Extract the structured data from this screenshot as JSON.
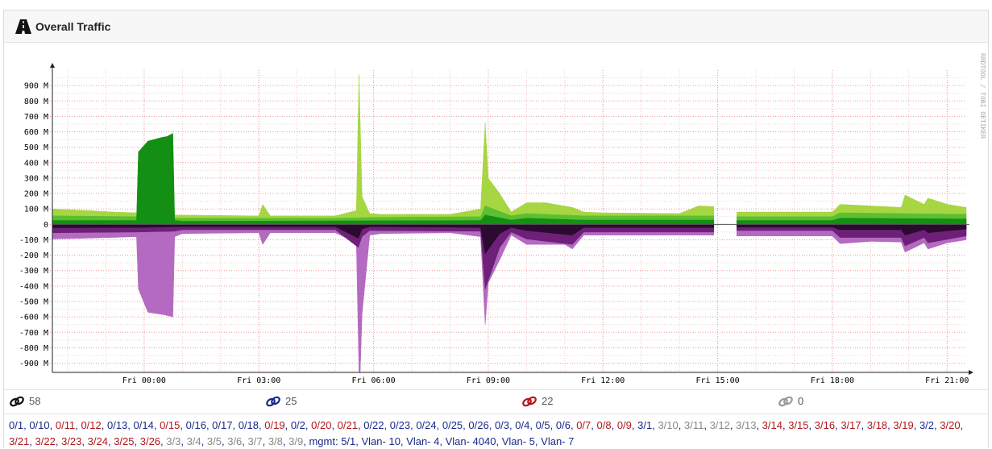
{
  "header": {
    "title": "Overall Traffic",
    "icon": "traffic-road-icon"
  },
  "watermark": "RRDTOOL / TOBI OETIKER",
  "chart_data": {
    "type": "area",
    "title": "",
    "xlabel": "",
    "ylabel": "",
    "ylim": [
      -960,
      1000
    ],
    "x_ticks": [
      "Fri 00:00",
      "Fri 03:00",
      "Fri 06:00",
      "Fri 09:00",
      "Fri 12:00",
      "Fri 15:00",
      "Fri 18:00",
      "Fri 21:00"
    ],
    "y_ticks": [
      {
        "value": 900,
        "label": "900 M"
      },
      {
        "value": 800,
        "label": "800 M"
      },
      {
        "value": 700,
        "label": "700 M"
      },
      {
        "value": 600,
        "label": "600 M"
      },
      {
        "value": 500,
        "label": "500 M"
      },
      {
        "value": 400,
        "label": "400 M"
      },
      {
        "value": 300,
        "label": "300 M"
      },
      {
        "value": 200,
        "label": "200 M"
      },
      {
        "value": 100,
        "label": "100 M"
      },
      {
        "value": 0,
        "label": "0"
      },
      {
        "value": -100,
        "label": "-100 M"
      },
      {
        "value": -200,
        "label": "-200 M"
      },
      {
        "value": -300,
        "label": "-300 M"
      },
      {
        "value": -400,
        "label": "-400 M"
      },
      {
        "value": -500,
        "label": "-500 M"
      },
      {
        "value": -600,
        "label": "-600 M"
      },
      {
        "value": -700,
        "label": "-700 M"
      },
      {
        "value": -800,
        "label": "-800 M"
      },
      {
        "value": -900,
        "label": "-900 M"
      }
    ],
    "x_hours_range": [
      -2.4,
      21.5
    ],
    "grid": true,
    "gaps": [
      [
        14.9,
        15.5
      ]
    ],
    "series": [
      {
        "direction": "in",
        "color": "#a6d642",
        "x": [
          -2.4,
          -1.5,
          -0.8,
          -0.2,
          0.8,
          1,
          3,
          3.1,
          3.3,
          5,
          5.55,
          5.62,
          5.7,
          5.9,
          6.2,
          8,
          8.8,
          8.92,
          9,
          9.3,
          9.6,
          10,
          10.5,
          11.2,
          11.5,
          12,
          14,
          14.5,
          14.9,
          15.5,
          18,
          18.2,
          19,
          19.8,
          19.9,
          20.4,
          20.5,
          21,
          21.5
        ],
        "values": [
          100,
          90,
          80,
          75,
          60,
          60,
          55,
          130,
          55,
          55,
          90,
          970,
          180,
          70,
          65,
          65,
          100,
          660,
          300,
          200,
          80,
          140,
          140,
          110,
          80,
          75,
          70,
          120,
          115,
          80,
          80,
          130,
          120,
          110,
          190,
          130,
          170,
          130,
          110
        ]
      },
      {
        "direction": "in",
        "color": "#5bbf31",
        "x": [
          -2.4,
          -0.2,
          0,
          0.7,
          0.8,
          1,
          5,
          6,
          8.8,
          8.92,
          9.6,
          10,
          11.5,
          14.9,
          15.5,
          18,
          18.2,
          21.5
        ],
        "values": [
          55,
          50,
          50,
          50,
          40,
          40,
          40,
          45,
          50,
          120,
          55,
          70,
          55,
          55,
          50,
          50,
          75,
          65
        ]
      },
      {
        "direction": "in",
        "color": "#139013",
        "x": [
          -2.4,
          -0.2,
          -0.15,
          0.1,
          0.4,
          0.6,
          0.75,
          0.8,
          1,
          8.8,
          8.92,
          9.6,
          10,
          11.5,
          14.9,
          15.5,
          18,
          18.2,
          21.5
        ],
        "values": [
          25,
          25,
          470,
          540,
          560,
          570,
          590,
          25,
          20,
          25,
          60,
          28,
          40,
          28,
          28,
          25,
          25,
          40,
          35
        ]
      },
      {
        "direction": "out",
        "color": "#b46ac0",
        "x": [
          -2.4,
          -1.5,
          -0.8,
          -0.2,
          -0.15,
          0.1,
          0.5,
          0.75,
          0.8,
          1,
          3,
          3.1,
          3.3,
          5,
          5.55,
          5.62,
          5.65,
          5.7,
          5.9,
          6.2,
          8,
          8.8,
          8.92,
          9,
          9.3,
          9.6,
          10,
          11,
          11.2,
          11.5,
          14.9,
          15.5,
          18,
          18.2,
          19,
          19.8,
          19.9,
          20.4,
          20.5,
          21,
          21.5
        ],
        "values": [
          -95,
          -90,
          -85,
          -80,
          -420,
          -570,
          -585,
          -600,
          -80,
          -60,
          -55,
          -130,
          -55,
          -55,
          -120,
          -960,
          -960,
          -580,
          -70,
          -60,
          -55,
          -80,
          -650,
          -380,
          -230,
          -70,
          -130,
          -130,
          -160,
          -70,
          -70,
          -75,
          -75,
          -125,
          -110,
          -115,
          -180,
          -120,
          -160,
          -120,
          -100
        ]
      },
      {
        "direction": "out",
        "color": "#6e2079",
        "x": [
          -2.4,
          -0.2,
          0.8,
          1,
          5,
          5.6,
          5.7,
          5.9,
          8.8,
          8.92,
          9.3,
          9.6,
          10,
          11.2,
          11.5,
          14.9,
          15.5,
          18,
          18.2,
          19.8,
          19.9,
          20.4,
          20.5,
          21.5
        ],
        "values": [
          -55,
          -50,
          -45,
          -35,
          -35,
          -150,
          -80,
          -40,
          -45,
          -420,
          -150,
          -50,
          -95,
          -130,
          -50,
          -50,
          -40,
          -40,
          -85,
          -85,
          -140,
          -85,
          -120,
          -75
        ]
      },
      {
        "direction": "out",
        "color": "#2a0a2e",
        "x": [
          -2.4,
          -0.2,
          1,
          5,
          5.6,
          5.7,
          5.9,
          8.8,
          8.92,
          9.3,
          9.6,
          10,
          11.2,
          11.5,
          14.9,
          15.5,
          18,
          18.2,
          19.8,
          19.9,
          20.4,
          20.5,
          21.5
        ],
        "values": [
          -22,
          -20,
          -15,
          -15,
          -90,
          -30,
          -15,
          -20,
          -190,
          -60,
          -20,
          -40,
          -70,
          -20,
          -20,
          -18,
          -18,
          -35,
          -35,
          -70,
          -35,
          -55,
          -30
        ]
      }
    ]
  },
  "status": [
    {
      "icon": "link-icon",
      "color": "#111111",
      "count": "58"
    },
    {
      "icon": "link-icon",
      "color": "#1a2a8a",
      "count": "25"
    },
    {
      "icon": "link-icon",
      "color": "#b0161b",
      "count": "22"
    },
    {
      "icon": "link-icon",
      "color": "#9a9a9a",
      "count": "0"
    }
  ],
  "ports": [
    {
      "label": "0/1",
      "state": "up"
    },
    {
      "label": "0/10",
      "state": "up"
    },
    {
      "label": "0/11",
      "state": "down"
    },
    {
      "label": "0/12",
      "state": "down"
    },
    {
      "label": "0/13",
      "state": "up"
    },
    {
      "label": "0/14",
      "state": "up"
    },
    {
      "label": "0/15",
      "state": "down"
    },
    {
      "label": "0/16",
      "state": "up"
    },
    {
      "label": "0/17",
      "state": "up"
    },
    {
      "label": "0/18",
      "state": "up"
    },
    {
      "label": "0/19",
      "state": "down"
    },
    {
      "label": "0/2",
      "state": "up"
    },
    {
      "label": "0/20",
      "state": "down"
    },
    {
      "label": "0/21",
      "state": "down"
    },
    {
      "label": "0/22",
      "state": "up"
    },
    {
      "label": "0/23",
      "state": "up"
    },
    {
      "label": "0/24",
      "state": "up"
    },
    {
      "label": "0/25",
      "state": "up"
    },
    {
      "label": "0/26",
      "state": "up"
    },
    {
      "label": "0/3",
      "state": "up"
    },
    {
      "label": "0/4",
      "state": "up"
    },
    {
      "label": "0/5",
      "state": "up"
    },
    {
      "label": "0/6",
      "state": "up"
    },
    {
      "label": "0/7",
      "state": "down"
    },
    {
      "label": "0/8",
      "state": "down"
    },
    {
      "label": "0/9",
      "state": "down"
    },
    {
      "label": "3/1",
      "state": "up"
    },
    {
      "label": "3/10",
      "state": "disabled"
    },
    {
      "label": "3/11",
      "state": "disabled"
    },
    {
      "label": "3/12",
      "state": "disabled"
    },
    {
      "label": "3/13",
      "state": "disabled"
    },
    {
      "label": "3/14",
      "state": "down"
    },
    {
      "label": "3/15",
      "state": "down"
    },
    {
      "label": "3/16",
      "state": "down"
    },
    {
      "label": "3/17",
      "state": "down"
    },
    {
      "label": "3/18",
      "state": "down"
    },
    {
      "label": "3/19",
      "state": "down"
    },
    {
      "label": "3/2",
      "state": "up"
    },
    {
      "label": "3/20",
      "state": "down"
    },
    {
      "label": "3/21",
      "state": "down"
    },
    {
      "label": "3/22",
      "state": "down"
    },
    {
      "label": "3/23",
      "state": "down"
    },
    {
      "label": "3/24",
      "state": "down"
    },
    {
      "label": "3/25",
      "state": "down"
    },
    {
      "label": "3/26",
      "state": "down"
    },
    {
      "label": "3/3",
      "state": "disabled"
    },
    {
      "label": "3/4",
      "state": "disabled"
    },
    {
      "label": "3/5",
      "state": "disabled"
    },
    {
      "label": "3/6",
      "state": "disabled"
    },
    {
      "label": "3/7",
      "state": "disabled"
    },
    {
      "label": "3/8",
      "state": "disabled"
    },
    {
      "label": "3/9",
      "state": "disabled"
    },
    {
      "label": "mgmt: 5/1",
      "state": "up"
    },
    {
      "label": "Vlan- 10",
      "state": "up"
    },
    {
      "label": "Vlan- 4",
      "state": "up"
    },
    {
      "label": "Vlan- 4040",
      "state": "up"
    },
    {
      "label": "Vlan- 5",
      "state": "up"
    },
    {
      "label": "Vlan- 7",
      "state": "up"
    }
  ]
}
